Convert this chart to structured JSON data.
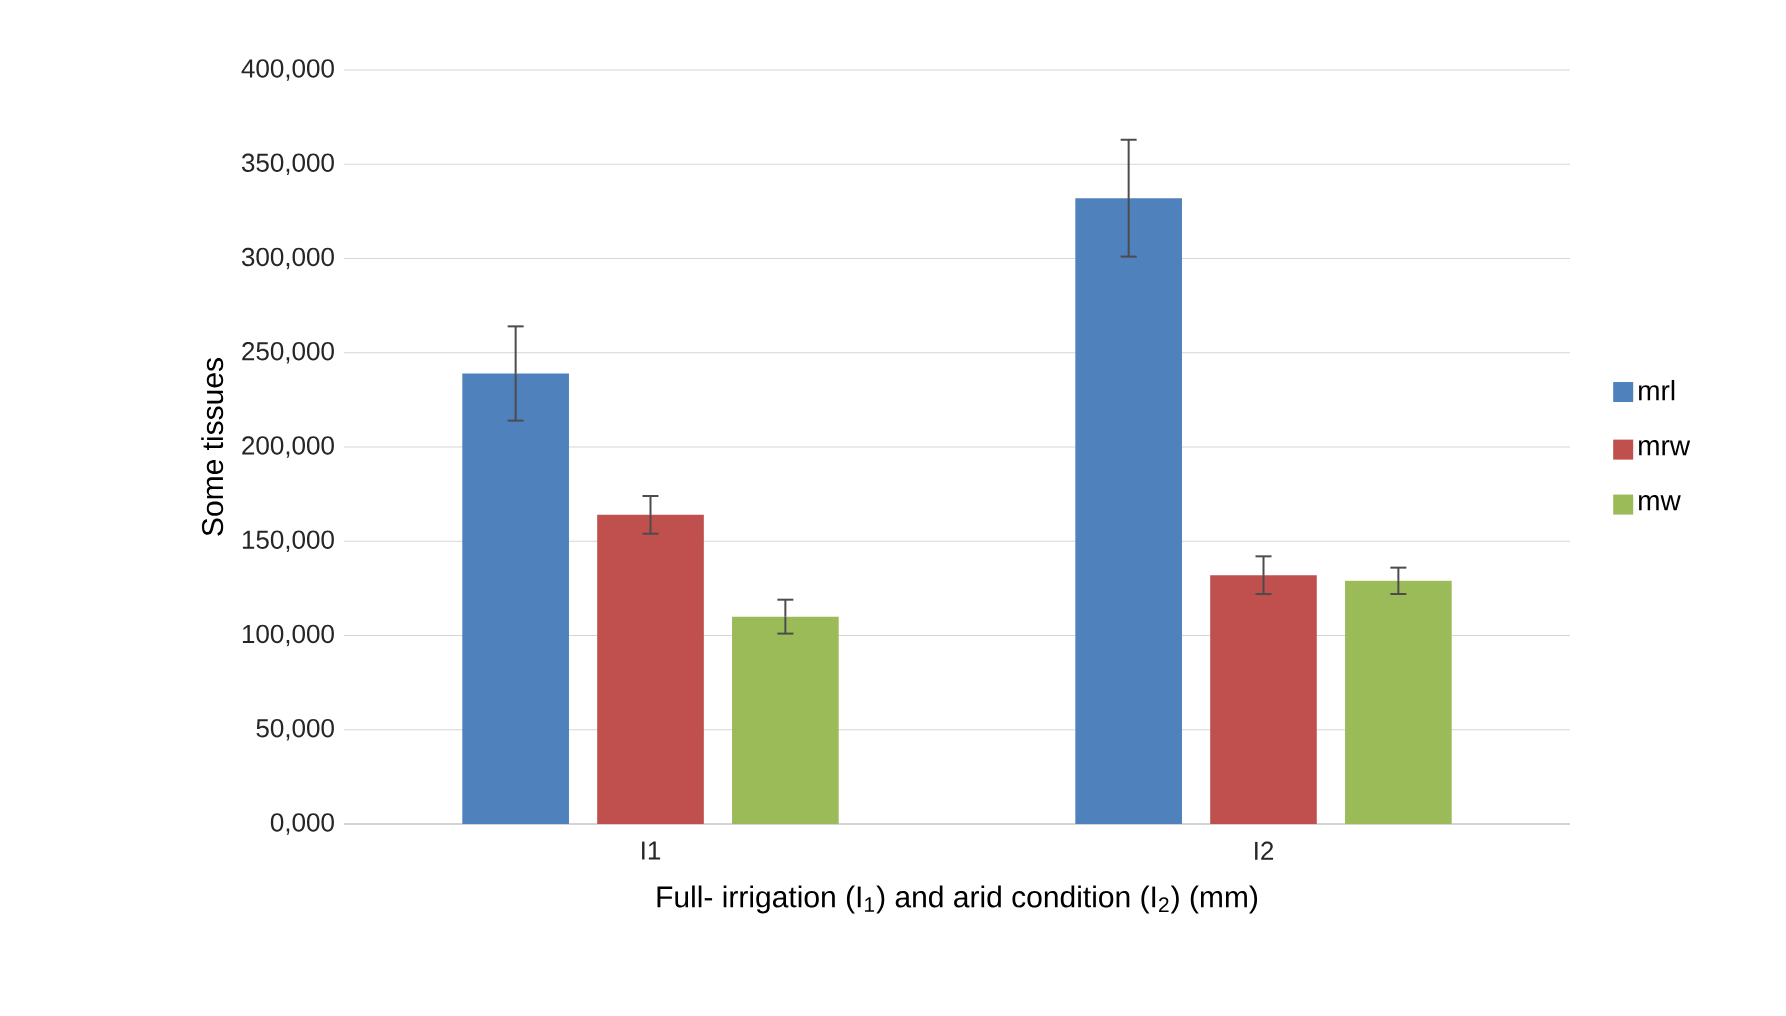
{
  "chart_data": {
    "type": "bar",
    "xlabel": "Full- irrigation (I$_{1}$) and arid condition (I$_{2}$) (mm)",
    "ylabel": "Some tissues",
    "categories": [
      "I1",
      "I2"
    ],
    "series": [
      {
        "name": "mrl",
        "color": "#4f81bd",
        "values": [
          239000,
          332000
        ],
        "errors": [
          25000,
          31000
        ]
      },
      {
        "name": "mrw",
        "color": "#c0504d",
        "values": [
          164000,
          132000
        ],
        "errors": [
          10000,
          10000
        ]
      },
      {
        "name": "mw",
        "color": "#9bbb59",
        "values": [
          110000,
          129000
        ],
        "errors": [
          9000,
          7000
        ]
      }
    ],
    "ylim": [
      0,
      400000
    ],
    "yticks": [
      {
        "value": 0,
        "label": "0,000"
      },
      {
        "value": 50000,
        "label": "50,000"
      },
      {
        "value": 100000,
        "label": "100,000"
      },
      {
        "value": 150000,
        "label": "150,000"
      },
      {
        "value": 200000,
        "label": "200,000"
      },
      {
        "value": 250000,
        "label": "250,000"
      },
      {
        "value": 300000,
        "label": "300,000"
      },
      {
        "value": 350000,
        "label": "350,000"
      },
      {
        "value": 400000,
        "label": "400,000"
      }
    ],
    "grid": "y",
    "legend": "right"
  }
}
